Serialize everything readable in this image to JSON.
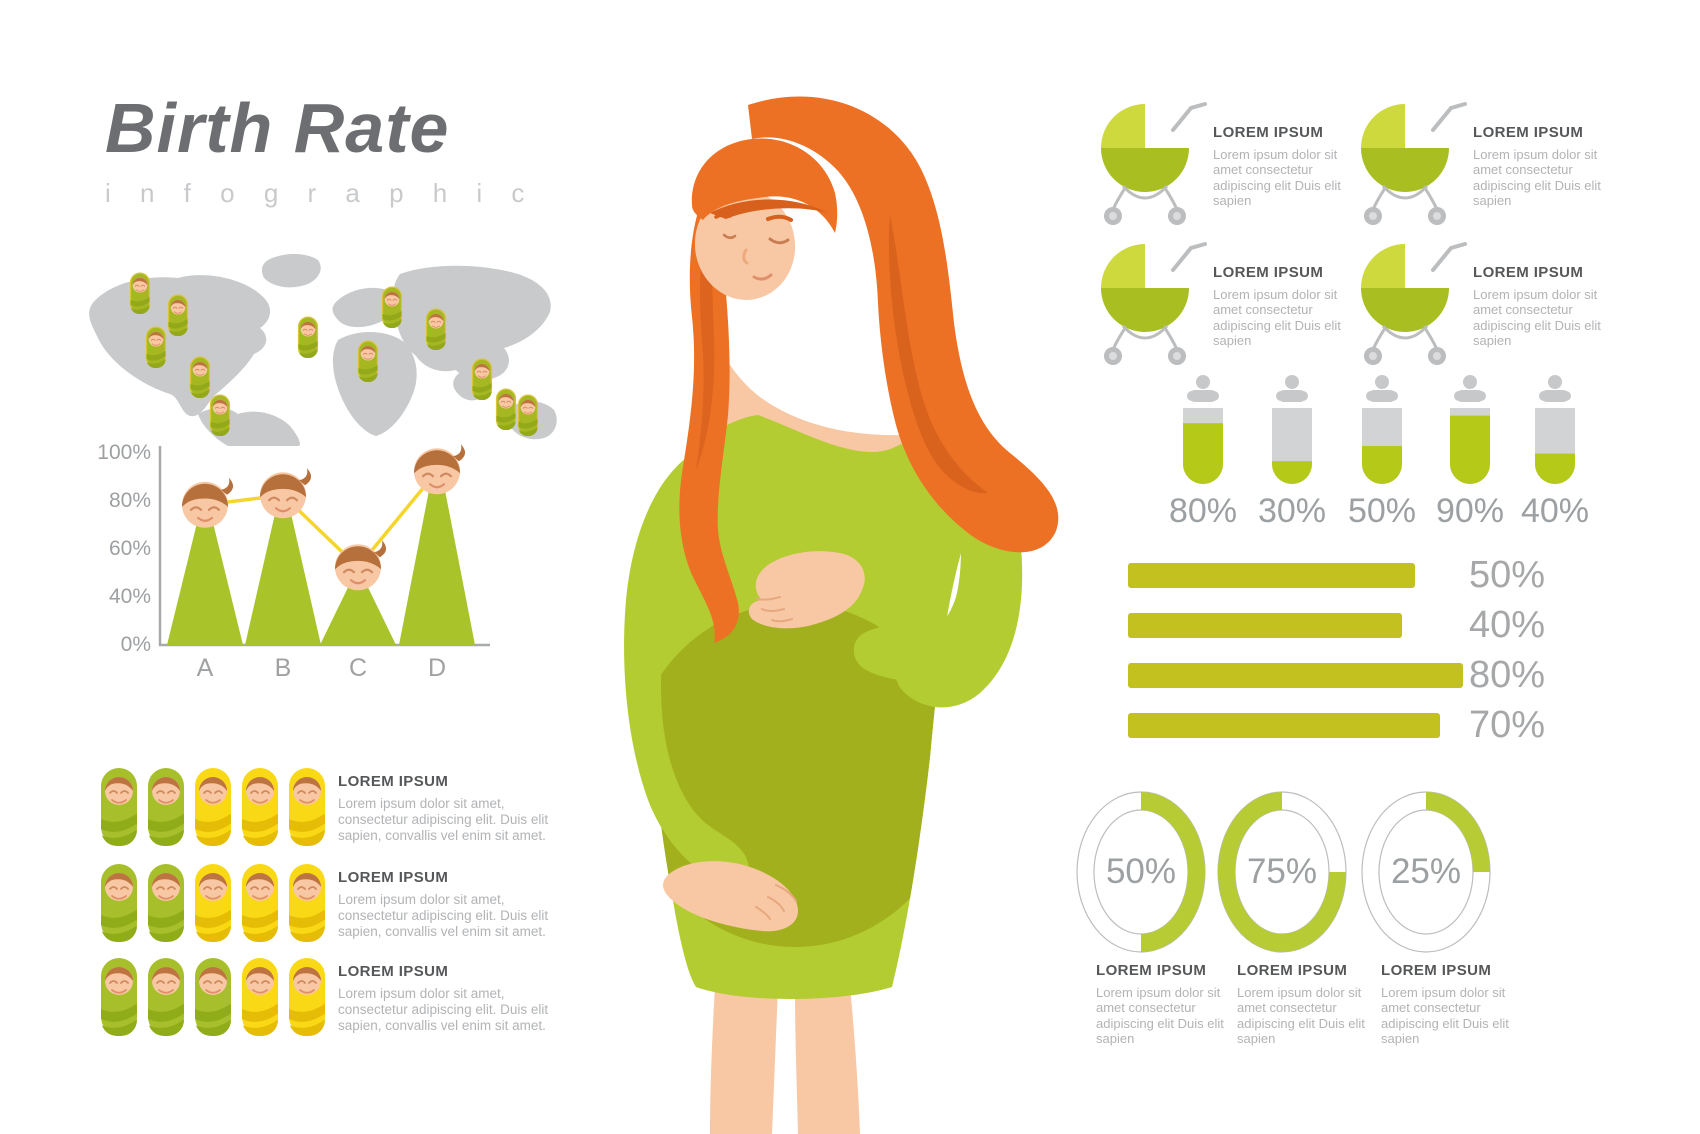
{
  "header": {
    "title": "Birth Rate",
    "subtitle": "i n f o g r a p h i c"
  },
  "lorem": {
    "heading": "LOREM IPSUM",
    "body_long": "Lorem ipsum dolor sit amet, consectetur adipiscing elit. Duis elit sapien, convallis vel enim sit amet.",
    "body_short": "Lorem ipsum dolor sit amet consectetur adipiscing elit Duis elit sapien"
  },
  "colors": {
    "green": "#a9c32b",
    "green_light": "#cdd93c",
    "green_dark": "#a9be21",
    "bar_olive": "#c2c120",
    "bottle_green": "#b4c918",
    "donut_green": "#b7cc34",
    "baby_green": "#a6bf2a",
    "baby_green_stripe": "#90ad19",
    "baby_yellow": "#f9d815",
    "baby_yellow_stripe": "#e5bd06",
    "line_yellow": "#f6d52b",
    "map_gray": "#c9cacb",
    "icon_gray": "#bcbdbf",
    "text_gray": "#9da0a2",
    "heading_gray": "#565759",
    "body_gray": "#b2b3b5"
  },
  "map": {
    "marker_count": 12
  },
  "chart_data": [
    {
      "type": "line",
      "title": "baby-triangle-chart",
      "categories": [
        "A",
        "B",
        "C",
        "D"
      ],
      "values": [
        78,
        82,
        52,
        92
      ],
      "unit": "%",
      "yticks": [
        "100%",
        "80%",
        "60%",
        "40%",
        "0%"
      ],
      "ylim": [
        0,
        100
      ],
      "xlabel": "",
      "ylabel": "",
      "grid": false,
      "legend": "none"
    },
    {
      "type": "pictogram",
      "title": "baby-rows",
      "rows": [
        {
          "green": 2,
          "yellow": 3,
          "heading": "LOREM IPSUM",
          "body": "Lorem ipsum dolor sit amet, consectetur adipiscing elit. Duis elit sapien, convallis vel enim sit amet."
        },
        {
          "green": 2,
          "yellow": 3,
          "heading": "LOREM IPSUM",
          "body": "Lorem ipsum dolor sit amet, consectetur adipiscing elit. Duis elit sapien, convallis vel enim sit amet."
        },
        {
          "green": 3,
          "yellow": 2,
          "heading": "LOREM IPSUM",
          "body": "Lorem ipsum dolor sit amet, consectetur adipiscing elit. Duis elit sapien, convallis vel enim sit amet."
        }
      ]
    },
    {
      "type": "bar",
      "title": "bottle-fill-chart",
      "categories": [
        "bottle-1",
        "bottle-2",
        "bottle-3",
        "bottle-4",
        "bottle-5"
      ],
      "values": [
        80,
        30,
        50,
        90,
        40
      ],
      "labels": [
        "80%",
        "30%",
        "50%",
        "90%",
        "40%"
      ],
      "ylim": [
        0,
        100
      ]
    },
    {
      "type": "bar",
      "title": "horizontal-bars",
      "orientation": "horizontal",
      "values": [
        50,
        40,
        80,
        70
      ],
      "labels": [
        "50%",
        "40%",
        "80%",
        "70%"
      ],
      "ylim": [
        0,
        100
      ]
    },
    {
      "type": "donut",
      "title": "donut-rings",
      "values": [
        50,
        75,
        25
      ],
      "labels": [
        "50%",
        "75%",
        "25%"
      ],
      "items": [
        {
          "heading": "LOREM IPSUM",
          "body": "Lorem ipsum dolor sit amet consectetur adipiscing elit Duis elit sapien"
        },
        {
          "heading": "LOREM IPSUM",
          "body": "Lorem ipsum dolor sit amet consectetur adipiscing elit Duis elit sapien"
        },
        {
          "heading": "LOREM IPSUM",
          "body": "Lorem ipsum dolor sit amet consectetur adipiscing elit Duis elit sapien"
        }
      ]
    }
  ],
  "strollers": [
    {
      "heading": "LOREM IPSUM",
      "body": "Lorem ipsum dolor sit amet consectetur adipiscing elit Duis elit sapien"
    },
    {
      "heading": "LOREM IPSUM",
      "body": "Lorem ipsum dolor sit amet consectetur adipiscing elit Duis elit sapien"
    },
    {
      "heading": "LOREM IPSUM",
      "body": "Lorem ipsum dolor sit amet consectetur adipiscing elit Duis elit sapien"
    },
    {
      "heading": "LOREM IPSUM",
      "body": "Lorem ipsum dolor sit amet consectetur adipiscing elit Duis elit sapien"
    }
  ]
}
